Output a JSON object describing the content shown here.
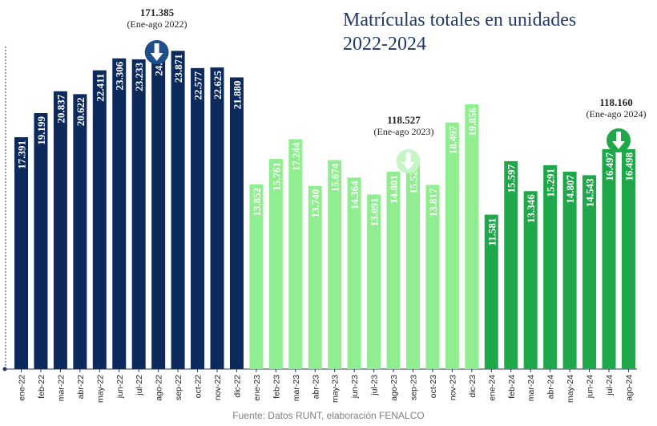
{
  "title": {
    "line1": "Matrículas totales en unidades",
    "line2": "2022-2024"
  },
  "source": "Fuente: Datos RUNT, elaboración FENALCO",
  "colors": {
    "y2022": "#0d2a5c",
    "y2023": "#90ee90",
    "y2024": "#1fa84a",
    "arrow2023": "#c6f6c6",
    "axis": "#1f3a68"
  },
  "annotations": [
    {
      "value": "171.385",
      "label": "(Ene-ago 2022)",
      "icon": "down-arrow-icon",
      "arrow_color": "#1f4e8c"
    },
    {
      "value": "118.527",
      "label": "(Ene-ago 2023)",
      "icon": "down-arrow-icon",
      "arrow_color": "#c6f6c6"
    },
    {
      "value": "118.160",
      "label": "(Ene-ago 2024)",
      "icon": "down-arrow-icon",
      "arrow_color": "#1fa84a"
    }
  ],
  "chart_data": {
    "type": "bar",
    "categories": [
      "ene-22",
      "feb-22",
      "mar-22",
      "abr-22",
      "may-22",
      "jun-22",
      "jul-22",
      "ago-22",
      "sep-22",
      "oct-22",
      "nov-22",
      "dic-22",
      "ene-23",
      "feb-23",
      "mar-23",
      "abr-23",
      "may-23",
      "jun-23",
      "jul-23",
      "ago-23",
      "sep-23",
      "oct-23",
      "nov-23",
      "dic-23",
      "ene-24",
      "feb-24",
      "mar-24",
      "abr-24",
      "may-24",
      "jun-24",
      "jul-24",
      "ago-24"
    ],
    "values": [
      17391,
      19199,
      20837,
      20622,
      22411,
      23306,
      23233,
      24386,
      23871,
      22577,
      22625,
      21880,
      13852,
      15761,
      17244,
      13740,
      15674,
      14364,
      13091,
      14801,
      15525,
      13817,
      18497,
      19856,
      11581,
      15597,
      13346,
      15291,
      14807,
      14543,
      16497,
      16498
    ],
    "labels": [
      "17.391",
      "19.199",
      "20.837",
      "20.622",
      "22.411",
      "23.306",
      "23.233",
      "24.386",
      "23.871",
      "22.577",
      "22.625",
      "21.880",
      "13.852",
      "15.761",
      "17.244",
      "13.740",
      "15.674",
      "14.364",
      "13.091",
      "14.801",
      "15.525",
      "13.817",
      "18.497",
      "19.856",
      "11.581",
      "15.597",
      "13.346",
      "15.291",
      "14.807",
      "14.543",
      "16.497",
      "16.498"
    ],
    "series_year": [
      "2022",
      "2022",
      "2022",
      "2022",
      "2022",
      "2022",
      "2022",
      "2022",
      "2022",
      "2022",
      "2022",
      "2022",
      "2023",
      "2023",
      "2023",
      "2023",
      "2023",
      "2023",
      "2023",
      "2023",
      "2023",
      "2023",
      "2023",
      "2023",
      "2024",
      "2024",
      "2024",
      "2024",
      "2024",
      "2024",
      "2024",
      "2024"
    ],
    "title": "Matrículas totales en unidades 2022-2024",
    "ylim": [
      0,
      26000
    ],
    "grid": false,
    "legend": "none"
  }
}
